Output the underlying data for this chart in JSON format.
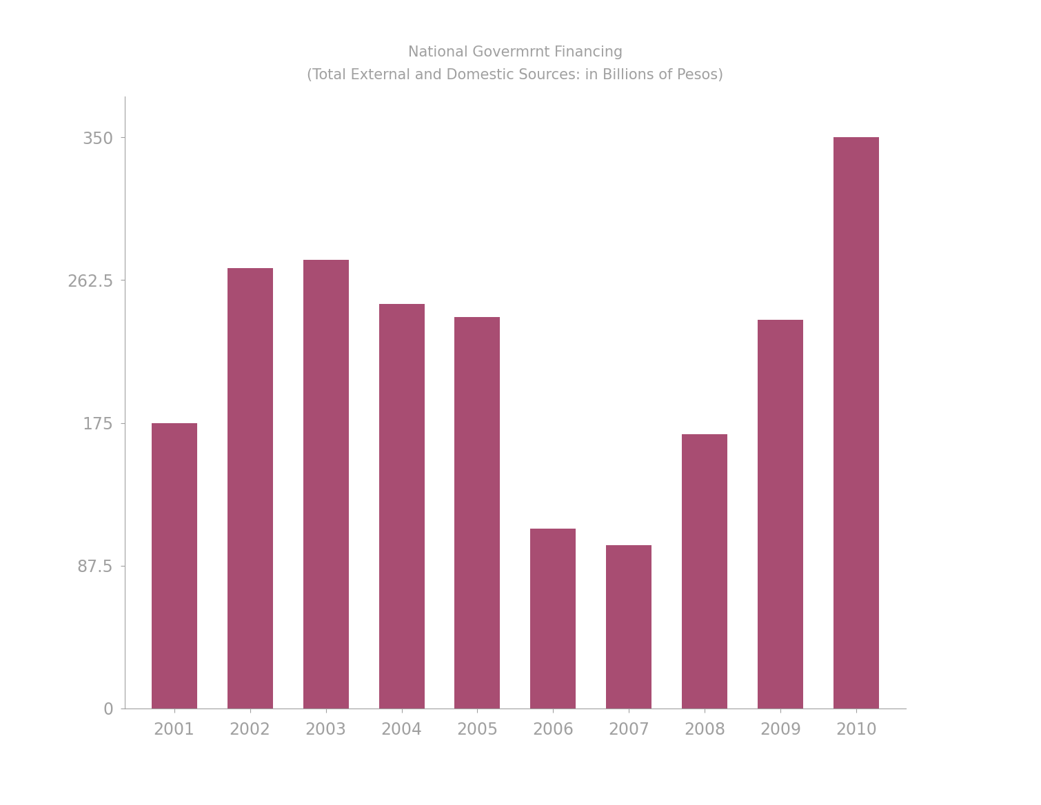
{
  "title_line1": "National Govermrnt Financing",
  "title_line2": "(Total External and Domestic Sources: in Billions of Pesos)",
  "categories": [
    "2001",
    "2002",
    "2003",
    "2004",
    "2005",
    "2006",
    "2007",
    "2008",
    "2009",
    "2010"
  ],
  "values": [
    175,
    270,
    275,
    248,
    240,
    110,
    100,
    168,
    238,
    350
  ],
  "bar_color": "#a84d72",
  "background_color": "#ffffff",
  "title_color": "#a0a0a0",
  "axis_color": "#a0a0a0",
  "tick_label_color": "#a0a0a0",
  "ylim": [
    0,
    375
  ],
  "yticks": [
    0,
    87.5,
    175,
    262.5,
    350
  ],
  "ytick_labels": [
    "0",
    "87.5",
    "175",
    "262.5",
    "350"
  ],
  "title_fontsize": 15,
  "tick_fontsize": 17,
  "bar_width": 0.6
}
